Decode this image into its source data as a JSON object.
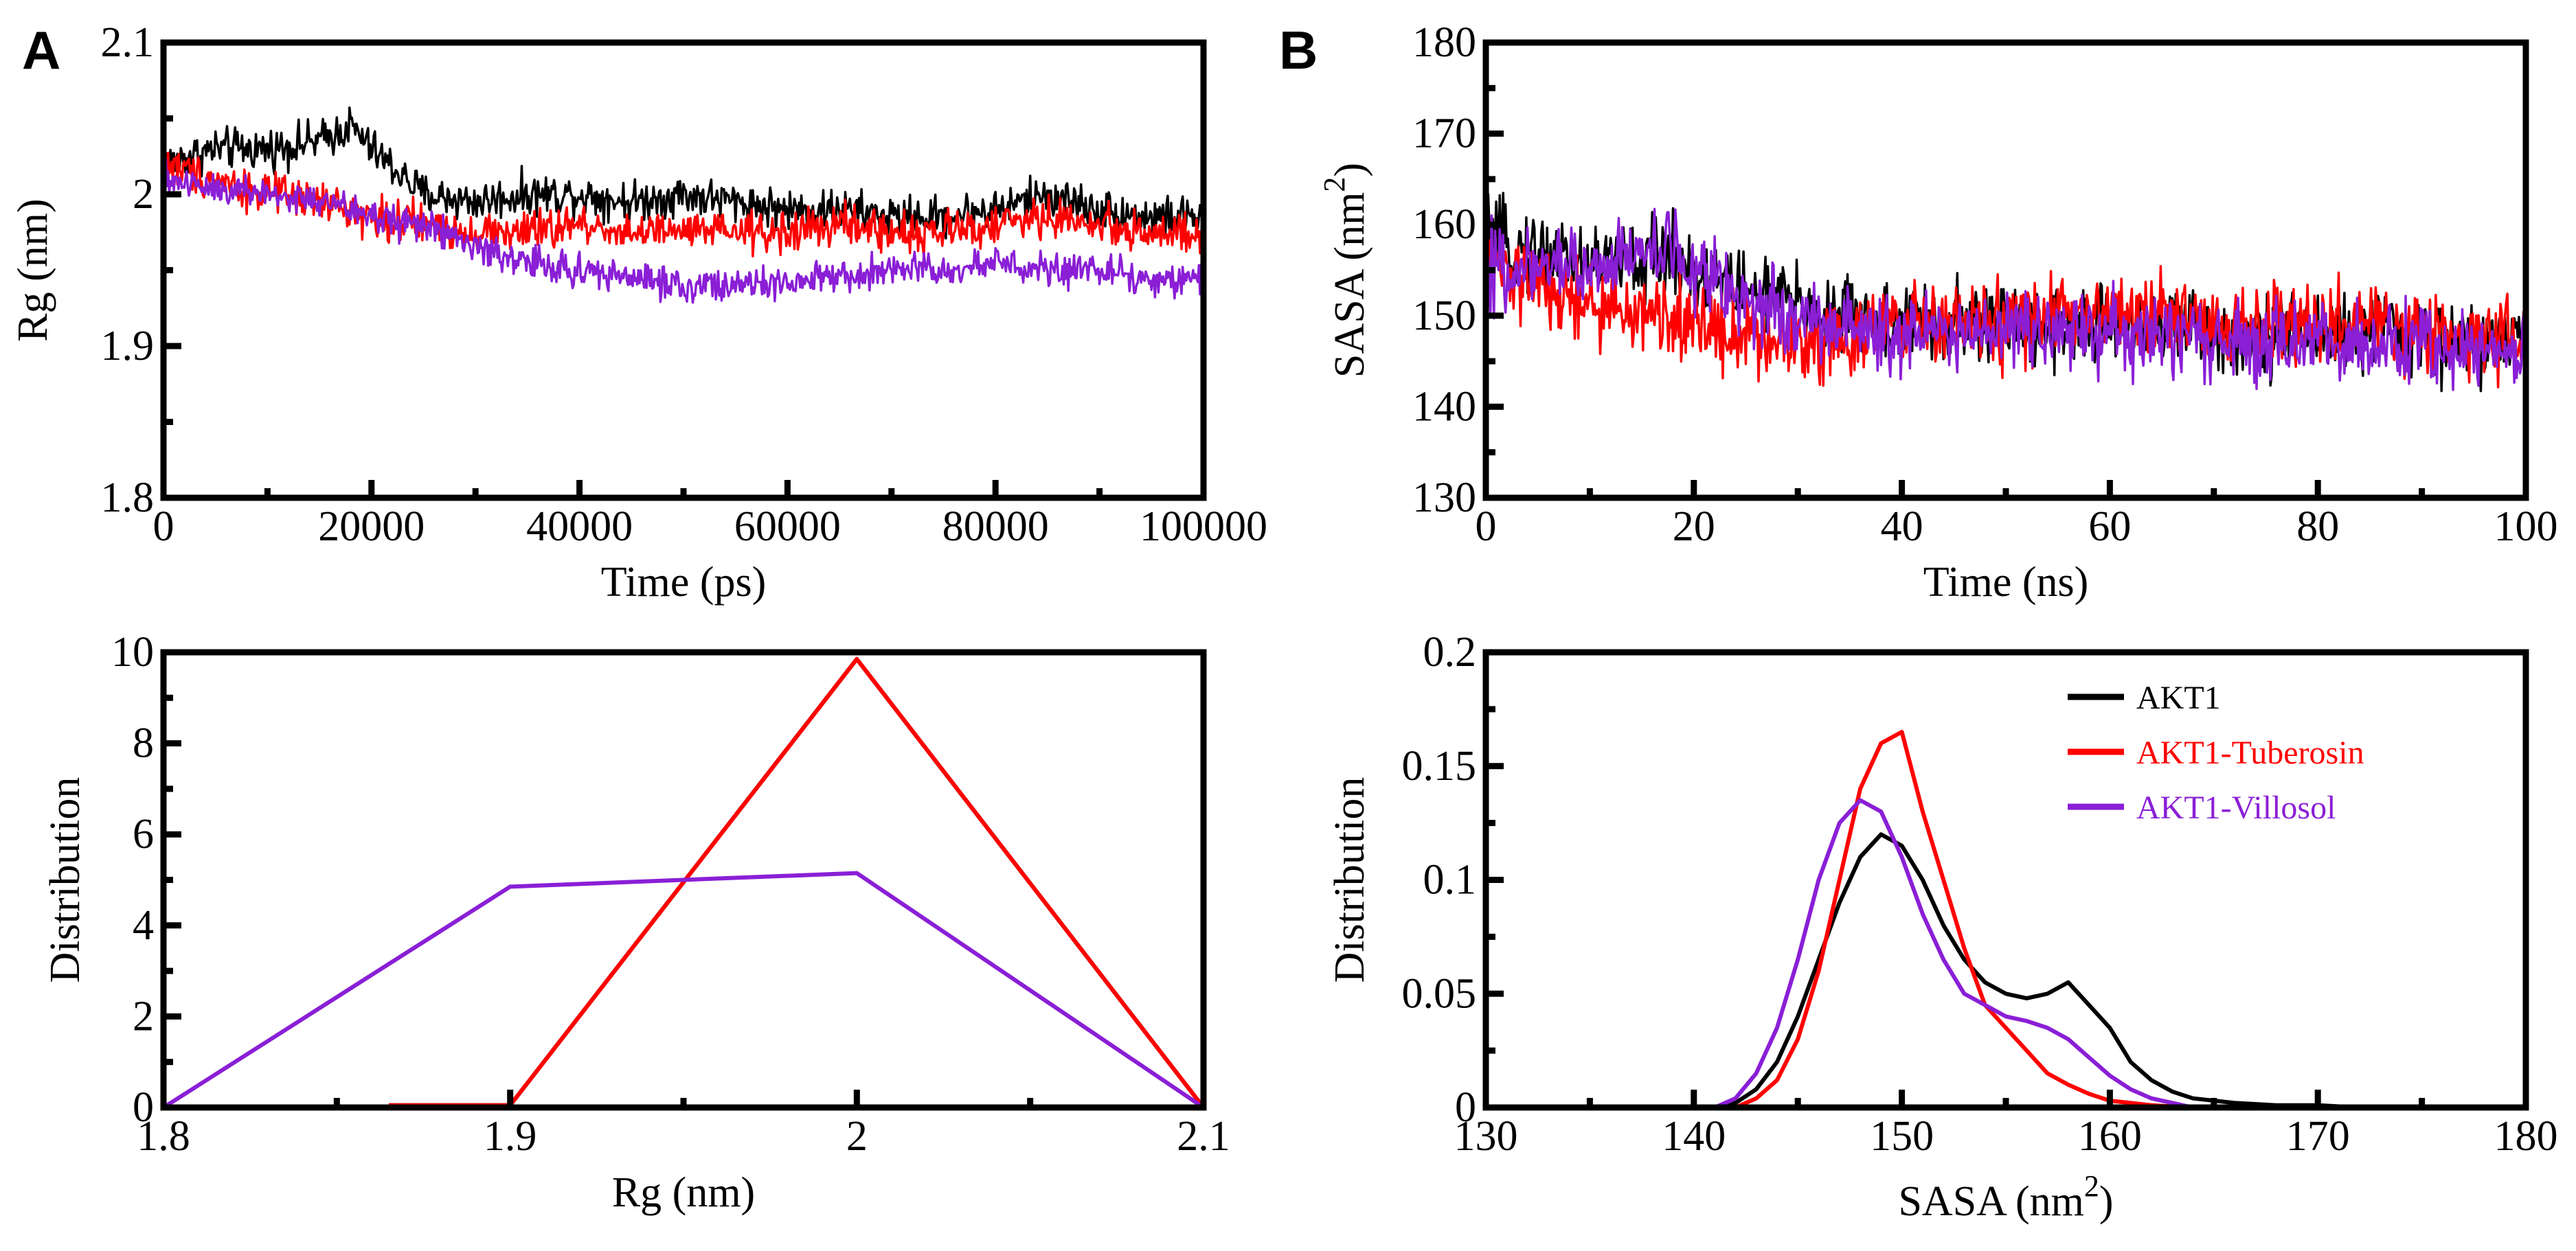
{
  "panel_labels": {
    "A": "A",
    "B": "B"
  },
  "colors": {
    "AKT1": "#000000",
    "AKT1-Tuberosin": "#ff0000",
    "AKT1-Villosol": "#8a1fd6"
  },
  "legend": {
    "entries": [
      "AKT1",
      "AKT1-Tuberosin",
      "AKT1-Villosol"
    ]
  },
  "chart_data": [
    {
      "id": "rg_time",
      "type": "line",
      "title": "",
      "xlabel": "Time (ps)",
      "ylabel": "Rg (nm)",
      "xlim": [
        0,
        100000
      ],
      "ylim": [
        1.8,
        2.1
      ],
      "xticks": [
        "0",
        "20000",
        "40000",
        "60000",
        "80000",
        "100000"
      ],
      "yticks": [
        "1.8",
        "1.9",
        "2",
        "2.1"
      ],
      "x": [
        0,
        5000,
        10000,
        15000,
        18000,
        20000,
        25000,
        30000,
        35000,
        40000,
        45000,
        50000,
        55000,
        60000,
        65000,
        70000,
        75000,
        80000,
        85000,
        90000,
        95000,
        100000
      ],
      "series": [
        {
          "name": "AKT1",
          "values": [
            2.02,
            2.03,
            2.03,
            2.035,
            2.045,
            2.03,
            2.0,
            1.995,
            2.0,
            2.0,
            1.995,
            2.0,
            1.995,
            1.99,
            1.99,
            1.985,
            1.985,
            1.99,
            2.0,
            1.99,
            1.985,
            1.985
          ],
          "noise": 0.012
        },
        {
          "name": "AKT1-Tuberosin",
          "values": [
            2.02,
            2.01,
            2.0,
            1.995,
            1.99,
            1.985,
            1.98,
            1.975,
            1.975,
            1.98,
            1.975,
            1.975,
            1.975,
            1.975,
            1.98,
            1.975,
            1.975,
            1.98,
            1.985,
            1.98,
            1.975,
            1.97
          ],
          "noise": 0.012
        },
        {
          "name": "AKT1-Villosol",
          "values": [
            2.01,
            2.005,
            2.0,
            1.995,
            1.99,
            1.985,
            1.98,
            1.965,
            1.955,
            1.95,
            1.945,
            1.94,
            1.94,
            1.94,
            1.945,
            1.95,
            1.95,
            1.955,
            1.95,
            1.95,
            1.945,
            1.945
          ],
          "noise": 0.01
        }
      ]
    },
    {
      "id": "rg_dist",
      "type": "line",
      "title": "",
      "xlabel": "Rg (nm)",
      "ylabel": "Distribution",
      "xlim": [
        1.8,
        2.1
      ],
      "ylim": [
        0,
        10
      ],
      "xticks": [
        "1.8",
        "1.9",
        "2",
        "2.1"
      ],
      "yticks": [
        "0",
        "2",
        "4",
        "6",
        "8",
        "10"
      ],
      "series": [
        {
          "name": "AKT1",
          "x": [
            1.865,
            1.9,
            2.0,
            2.1
          ],
          "values": [
            0.05,
            0.05,
            9.85,
            0
          ]
        },
        {
          "name": "AKT1-Tuberosin",
          "x": [
            1.865,
            1.9,
            2.0,
            2.1
          ],
          "values": [
            0.05,
            0.05,
            9.85,
            0
          ]
        },
        {
          "name": "AKT1-Villosol",
          "x": [
            1.8,
            1.9,
            2.0,
            2.1
          ],
          "values": [
            0,
            4.85,
            5.15,
            0
          ]
        }
      ]
    },
    {
      "id": "sasa_time",
      "type": "line",
      "title": "",
      "xlabel": "Time (ns)",
      "ylabel": "SASA (nm",
      "ylabel_sup": "2",
      "ylabel_end": ")",
      "xlim": [
        0,
        100
      ],
      "ylim": [
        130,
        180
      ],
      "xticks": [
        "0",
        "20",
        "40",
        "60",
        "80",
        "100"
      ],
      "yticks": [
        "130",
        "140",
        "150",
        "160",
        "170",
        "180"
      ],
      "x": [
        0,
        5,
        10,
        15,
        18,
        20,
        25,
        30,
        35,
        40,
        45,
        50,
        55,
        60,
        65,
        70,
        75,
        80,
        85,
        90,
        95,
        100
      ],
      "series": [
        {
          "name": "AKT1",
          "values": [
            158,
            157,
            156,
            156,
            157,
            155,
            153,
            151,
            150,
            149,
            149,
            149,
            149,
            149,
            149,
            148,
            148,
            148,
            148,
            148,
            147,
            147
          ],
          "noise": 4
        },
        {
          "name": "AKT1-Tuberosin",
          "values": [
            156,
            153,
            151,
            150,
            150,
            149,
            148,
            147,
            148,
            149,
            149,
            149,
            150,
            150,
            150,
            149,
            149,
            149,
            149,
            148,
            148,
            148
          ],
          "noise": 4
        },
        {
          "name": "AKT1-Villosol",
          "values": [
            155,
            155,
            156,
            157,
            158,
            155,
            152,
            150,
            149,
            148,
            148,
            148,
            148,
            148,
            148,
            148,
            147,
            147,
            147,
            147,
            146,
            146
          ],
          "noise": 4
        }
      ]
    },
    {
      "id": "sasa_dist",
      "type": "line",
      "title": "",
      "xlabel": "SASA (nm",
      "xlabel_sup": "2",
      "xlabel_end": ")",
      "ylabel": "Distribution",
      "xlim": [
        130,
        180
      ],
      "ylim": [
        0,
        0.2
      ],
      "xticks": [
        "130",
        "140",
        "150",
        "160",
        "170",
        "180"
      ],
      "yticks": [
        "0",
        "0.05",
        "0.1",
        "0.15",
        "0.2"
      ],
      "series": [
        {
          "name": "AKT1",
          "x": [
            141,
            142,
            143,
            144,
            145,
            146,
            147,
            148,
            149,
            150,
            151,
            152,
            153,
            154,
            155,
            156,
            157,
            158,
            159,
            160,
            161,
            162,
            163,
            164,
            166,
            168,
            170,
            172
          ],
          "values": [
            0,
            0.002,
            0.008,
            0.02,
            0.04,
            0.065,
            0.09,
            0.11,
            0.12,
            0.115,
            0.1,
            0.08,
            0.065,
            0.055,
            0.05,
            0.048,
            0.05,
            0.055,
            0.045,
            0.035,
            0.02,
            0.012,
            0.007,
            0.004,
            0.002,
            0.001,
            0.001,
            0
          ]
        },
        {
          "name": "AKT1-Tuberosin",
          "x": [
            142,
            143,
            144,
            145,
            146,
            147,
            148,
            149,
            150,
            151,
            152,
            153,
            154,
            155,
            156,
            157,
            158,
            159,
            160,
            161,
            162,
            164
          ],
          "values": [
            0,
            0.004,
            0.012,
            0.03,
            0.06,
            0.1,
            0.14,
            0.16,
            0.165,
            0.13,
            0.1,
            0.07,
            0.045,
            0.035,
            0.025,
            0.015,
            0.01,
            0.006,
            0.003,
            0.002,
            0.001,
            0
          ]
        },
        {
          "name": "AKT1-Villosol",
          "x": [
            141,
            142,
            143,
            144,
            145,
            146,
            147,
            148,
            149,
            150,
            151,
            152,
            153,
            154,
            155,
            156,
            157,
            158,
            159,
            160,
            161,
            162,
            164
          ],
          "values": [
            0,
            0.004,
            0.015,
            0.035,
            0.065,
            0.1,
            0.125,
            0.135,
            0.13,
            0.11,
            0.085,
            0.065,
            0.05,
            0.045,
            0.04,
            0.038,
            0.035,
            0.03,
            0.022,
            0.014,
            0.008,
            0.004,
            0
          ]
        }
      ]
    }
  ]
}
